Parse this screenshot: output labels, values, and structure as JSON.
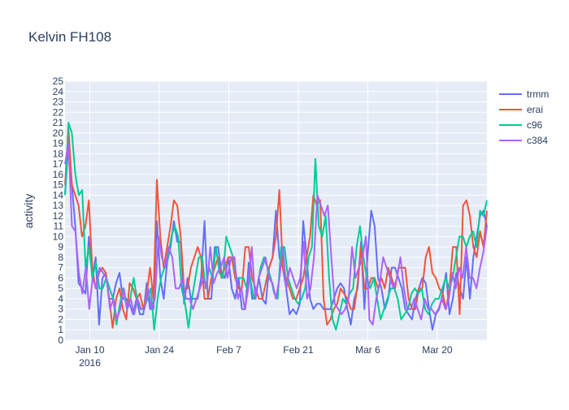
{
  "chart_data": {
    "type": "line",
    "title": "Kelvin FH108",
    "xlabel": "",
    "ylabel": "activity",
    "x_start": "2016-01-05",
    "x_end": "2016-03-30",
    "xlim": [
      "2016-01-05",
      "2016-03-30"
    ],
    "ylim": [
      0,
      25
    ],
    "grid": true,
    "legend_position": "top-right",
    "x_ticks": [
      {
        "date": "2016-01-10",
        "label": "Jan 10",
        "sublabel": "2016"
      },
      {
        "date": "2016-01-24",
        "label": "Jan 24",
        "sublabel": ""
      },
      {
        "date": "2016-02-07",
        "label": "Feb 7",
        "sublabel": ""
      },
      {
        "date": "2016-02-21",
        "label": "Feb 21",
        "sublabel": ""
      },
      {
        "date": "2016-03-06",
        "label": "Mar 6",
        "sublabel": ""
      },
      {
        "date": "2016-03-20",
        "label": "Mar 20",
        "sublabel": ""
      }
    ],
    "y_ticks": [
      0,
      1,
      2,
      3,
      4,
      5,
      6,
      7,
      8,
      9,
      10,
      11,
      12,
      13,
      14,
      15,
      16,
      17,
      18,
      19,
      20,
      21,
      22,
      23,
      24,
      25
    ],
    "series": [
      {
        "name": "trmm",
        "color": "#636efa",
        "values": [
          14,
          19,
          15,
          11,
          5.5,
          5,
          4.5,
          10,
          6,
          8,
          1.5,
          6,
          6.5,
          4,
          4,
          5.5,
          6.5,
          4,
          4,
          3.5,
          2.5,
          4,
          2.5,
          2.5,
          5.5,
          3,
          3,
          11.5,
          6,
          4,
          7.5,
          9,
          11.5,
          9.5,
          9.5,
          3.5,
          6,
          4,
          4,
          4,
          6,
          11.5,
          4,
          4,
          9,
          9,
          6.5,
          6,
          8,
          5,
          4,
          6,
          3,
          3,
          7.5,
          4,
          4,
          6,
          4,
          3.5,
          7,
          8,
          12.5,
          8,
          7,
          5,
          2.5,
          3,
          2.5,
          3.5,
          11.5,
          8,
          4,
          3,
          3.5,
          3.5,
          3,
          3,
          3,
          4,
          5,
          5.5,
          5,
          3,
          1.5,
          4,
          5,
          9.5,
          3,
          8.5,
          12.5,
          11,
          6,
          5,
          3,
          4,
          7,
          7,
          6,
          5,
          3,
          2.5,
          2,
          4,
          5,
          6,
          5.5,
          3,
          1,
          2.5,
          3,
          4.5,
          6.5,
          2.5,
          4,
          6.5,
          5,
          4,
          8,
          4,
          8,
          10,
          12,
          12.5,
          11
        ]
      },
      {
        "name": "erai",
        "color": "#ef553b",
        "values": [
          15,
          20.5,
          15,
          14,
          13,
          10,
          11,
          13.5,
          7,
          5,
          6.5,
          7,
          6.5,
          4,
          1.2,
          4,
          5,
          3,
          2,
          5.5,
          5,
          4,
          4.5,
          3,
          4.5,
          7,
          4,
          15.5,
          10,
          7,
          9,
          11,
          13.5,
          13,
          10,
          5,
          5,
          7,
          8,
          9,
          8,
          4,
          4,
          6,
          7,
          8,
          6,
          7,
          8,
          8,
          6,
          5,
          5,
          9,
          9,
          6,
          5,
          4,
          4,
          5.5,
          7,
          8,
          10,
          14.5,
          7,
          6,
          5,
          4,
          4,
          5,
          6,
          8,
          10,
          14,
          13,
          13.5,
          4,
          1.5,
          2,
          3,
          3.5,
          5,
          4.5,
          4,
          3,
          3,
          5.5,
          9,
          5,
          5,
          6,
          6,
          5,
          6,
          5,
          7,
          6,
          5,
          7,
          7,
          7,
          4,
          3,
          3,
          5,
          5,
          8,
          9,
          6.5,
          6,
          5,
          4.5,
          3,
          5,
          9,
          9,
          2.5,
          13,
          13.5,
          12,
          9,
          8,
          10.5,
          9,
          12.5
        ]
      },
      {
        "name": "c96",
        "color": "#00cc96",
        "values": [
          14,
          21,
          20,
          16,
          14,
          14.5,
          7,
          9,
          6,
          7.5,
          5,
          5,
          6,
          5,
          4,
          1.5,
          3.5,
          5,
          3,
          4,
          6,
          4,
          3,
          3,
          4,
          5,
          1,
          4,
          6,
          7,
          8,
          10,
          11,
          10,
          5,
          3.5,
          1.2,
          4,
          6,
          8,
          8,
          5,
          7,
          6,
          9,
          6.5,
          6,
          10,
          9,
          8,
          6,
          6,
          6,
          5,
          6,
          4,
          5,
          7,
          8,
          7,
          6,
          4.5,
          4,
          9,
          9,
          6,
          5,
          4,
          3.5,
          4,
          5,
          8,
          9,
          17.5,
          11,
          10,
          12,
          6,
          2,
          1,
          2.5,
          4,
          3.5,
          4.5,
          5,
          9,
          11,
          8,
          6,
          5,
          6,
          4,
          2,
          3,
          4,
          5,
          5,
          4,
          2,
          2.5,
          3,
          4.5,
          5,
          4.5,
          5,
          3,
          2.5,
          3.5,
          4,
          4,
          5,
          6,
          5,
          6,
          8,
          10,
          10,
          9,
          10,
          10.5,
          9,
          12.5,
          12,
          13.5
        ]
      },
      {
        "name": "c384",
        "color": "#ab63fa",
        "values": [
          17,
          19,
          11,
          10.5,
          6.5,
          4.5,
          7,
          3,
          6,
          5,
          7,
          6.5,
          6,
          3,
          4,
          2,
          3,
          5,
          3,
          4,
          2.5,
          4,
          3,
          3,
          5,
          3,
          4,
          10,
          8,
          7,
          9,
          8,
          5,
          5,
          6,
          4,
          4,
          3,
          4,
          5,
          6,
          5,
          9,
          5.5,
          6.5,
          7,
          8,
          6,
          8,
          8,
          4,
          5,
          3,
          5,
          9,
          4,
          6,
          7,
          8,
          6,
          5.5,
          4,
          6,
          9,
          5,
          7,
          6,
          5,
          6,
          9.5,
          4,
          5,
          8,
          14,
          13,
          12,
          13,
          8,
          3.5,
          3,
          2.5,
          3,
          4,
          9,
          6,
          7,
          8,
          10,
          2,
          1.5,
          4,
          5.5,
          8,
          7,
          6,
          5,
          6,
          8,
          5,
          3,
          3,
          4,
          3,
          2,
          4,
          3,
          3,
          2.5,
          3,
          4,
          3,
          4,
          6.5,
          5,
          7,
          6,
          9,
          6,
          6,
          5,
          7,
          8.5,
          11
        ]
      }
    ]
  }
}
